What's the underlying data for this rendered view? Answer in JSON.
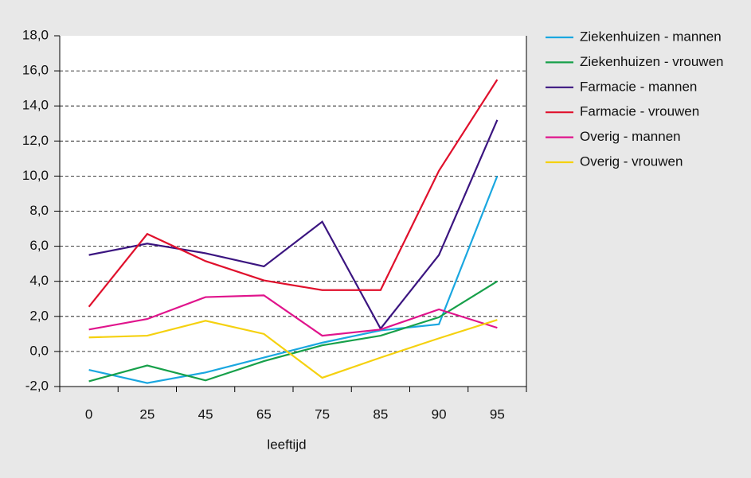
{
  "chart_data": {
    "type": "line",
    "x_label": "leeftijd",
    "categories": [
      "0",
      "25",
      "45",
      "65",
      "75",
      "85",
      "90",
      "95"
    ],
    "series": [
      {
        "name": "Ziekenhuizen - mannen",
        "color": "#1aa7e0",
        "values": [
          -1.05,
          -1.8,
          -1.2,
          -0.35,
          0.5,
          1.2,
          1.55,
          10.0
        ]
      },
      {
        "name": "Ziekenhuizen - vrouwen",
        "color": "#17a04a",
        "values": [
          -1.7,
          -0.8,
          -1.65,
          -0.55,
          0.35,
          0.9,
          1.95,
          4.0
        ]
      },
      {
        "name": "Farmacie - mannen",
        "color": "#3b1580",
        "values": [
          5.5,
          6.15,
          5.6,
          4.85,
          7.4,
          1.3,
          5.5,
          13.2
        ]
      },
      {
        "name": "Farmacie - vrouwen",
        "color": "#e0102c",
        "values": [
          2.55,
          6.7,
          5.15,
          4.05,
          3.5,
          3.5,
          10.3,
          15.5
        ]
      },
      {
        "name": "Overig - mannen",
        "color": "#e0148c",
        "values": [
          1.25,
          1.85,
          3.1,
          3.2,
          0.9,
          1.25,
          2.4,
          1.35
        ]
      },
      {
        "name": "Overig - vrouwen",
        "color": "#f5d10f",
        "values": [
          0.8,
          0.9,
          1.75,
          1.0,
          -1.5,
          -0.35,
          0.75,
          1.8
        ]
      }
    ],
    "ylim": [
      -2,
      18
    ],
    "yticks": [
      {
        "value": -2,
        "label": "-2,0"
      },
      {
        "value": 0,
        "label": "0,0"
      },
      {
        "value": 2,
        "label": "2,0"
      },
      {
        "value": 4,
        "label": "4,0"
      },
      {
        "value": 6,
        "label": "6,0"
      },
      {
        "value": 8,
        "label": "8,0"
      },
      {
        "value": 10,
        "label": "10,0"
      },
      {
        "value": 12,
        "label": "12,0"
      },
      {
        "value": 14,
        "label": "14,0"
      },
      {
        "value": 16,
        "label": "16,0"
      },
      {
        "value": 18,
        "label": "18,0"
      }
    ],
    "grid": true,
    "legend": "right"
  }
}
